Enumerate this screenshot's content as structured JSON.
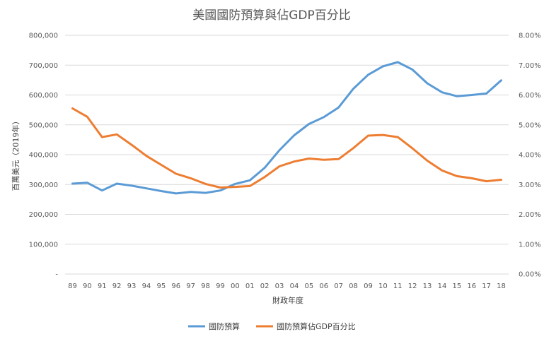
{
  "chart_data": {
    "type": "line",
    "title": "美國國防預算與佔GDP百分比",
    "xlabel": "財政年度",
    "ylabel": "百萬美元（2019年）",
    "y_left": {
      "range": [
        0,
        800000
      ],
      "ticks": [
        0,
        100000,
        200000,
        300000,
        400000,
        500000,
        600000,
        700000,
        800000
      ],
      "tick_labels": [
        "-",
        "100,000",
        "200,000",
        "300,000",
        "400,000",
        "500,000",
        "600,000",
        "700,000",
        "800,000"
      ]
    },
    "y_right": {
      "range": [
        0,
        8
      ],
      "ticks": [
        0,
        1,
        2,
        3,
        4,
        5,
        6,
        7,
        8
      ],
      "tick_labels": [
        "0.00%",
        "1.00%",
        "2.00%",
        "3.00%",
        "4.00%",
        "5.00%",
        "6.00%",
        "7.00%",
        "8.00%"
      ]
    },
    "categories": [
      "89",
      "90",
      "91",
      "92",
      "93",
      "94",
      "95",
      "96",
      "97",
      "98",
      "99",
      "00",
      "01",
      "02",
      "03",
      "04",
      "05",
      "06",
      "07",
      "08",
      "09",
      "10",
      "11",
      "12",
      "13",
      "14",
      "15",
      "16",
      "17",
      "18"
    ],
    "grid": "horizontal",
    "legend_position": "bottom",
    "series": [
      {
        "name": "國防預算",
        "axis": "left",
        "color": "#5b9bd5",
        "values": [
          303000,
          306000,
          280000,
          303000,
          296000,
          287000,
          278000,
          270000,
          275000,
          272000,
          280000,
          302000,
          314000,
          356000,
          415000,
          465000,
          503000,
          526000,
          558000,
          621000,
          668000,
          696000,
          710000,
          685000,
          639000,
          609000,
          596000,
          600000,
          605000,
          649000
        ]
      },
      {
        "name": "國防預算佔GDP百分比",
        "axis": "right",
        "color": "#ed7d31",
        "values": [
          5.55,
          5.27,
          4.59,
          4.68,
          4.33,
          3.96,
          3.66,
          3.36,
          3.21,
          3.02,
          2.9,
          2.92,
          2.95,
          3.25,
          3.61,
          3.77,
          3.87,
          3.83,
          3.85,
          4.22,
          4.64,
          4.66,
          4.59,
          4.21,
          3.8,
          3.47,
          3.28,
          3.21,
          3.11,
          3.16
        ]
      }
    ]
  }
}
